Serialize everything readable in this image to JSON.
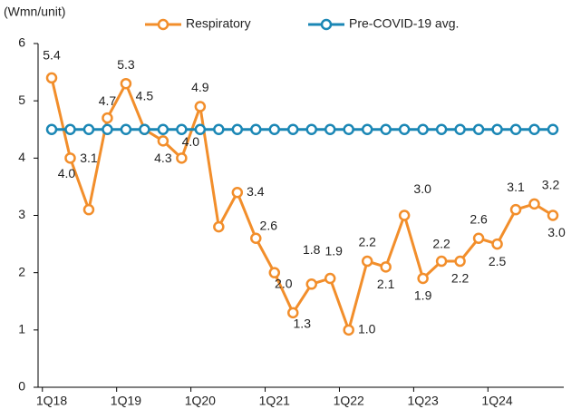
{
  "chart_data": {
    "type": "line",
    "y_label": "(Wmn/unit)",
    "categories": [
      "1Q18",
      null,
      null,
      null,
      "1Q19",
      null,
      null,
      null,
      "1Q20",
      null,
      null,
      null,
      "1Q21",
      null,
      null,
      null,
      "1Q22",
      null,
      null,
      null,
      "1Q23",
      null,
      null,
      null,
      "1Q24",
      null,
      null,
      null
    ],
    "series": [
      {
        "name": "Respiratory",
        "color": "#f28e2b",
        "values": [
          5.4,
          4.0,
          3.1,
          4.7,
          5.3,
          4.5,
          4.3,
          4.0,
          4.9,
          2.8,
          3.4,
          2.6,
          2.0,
          1.3,
          1.8,
          1.9,
          1.0,
          2.2,
          2.1,
          3.0,
          1.9,
          2.2,
          2.2,
          2.6,
          2.5,
          3.1,
          3.2,
          3.0
        ],
        "value_labels": [
          "5.4",
          "4.0",
          "3.1",
          "4.7",
          "5.3",
          "4.5",
          "4.3",
          "4.0",
          "4.9",
          null,
          "3.4",
          "2.6",
          "2.0",
          "1.3",
          "1.8",
          "1.9",
          "1.0",
          "2.2",
          "2.1",
          "3.0",
          "1.9",
          "2.2",
          "2.2",
          "2.6",
          "2.5",
          "3.1",
          "3.2",
          "3.0"
        ]
      },
      {
        "name": "Pre-COVID-19 avg.",
        "color": "#1b87b5",
        "values": [
          4.5,
          4.5,
          4.5,
          4.5,
          4.5,
          4.5,
          4.5,
          4.5,
          4.5,
          4.5,
          4.5,
          4.5,
          4.5,
          4.5,
          4.5,
          4.5,
          4.5,
          4.5,
          4.5,
          4.5,
          4.5,
          4.5,
          4.5,
          4.5,
          4.5,
          4.5,
          4.5,
          4.5
        ]
      }
    ],
    "ylim": [
      0,
      6
    ],
    "yticks": [
      0,
      1,
      2,
      3,
      4,
      5,
      6
    ],
    "legend": "top"
  }
}
